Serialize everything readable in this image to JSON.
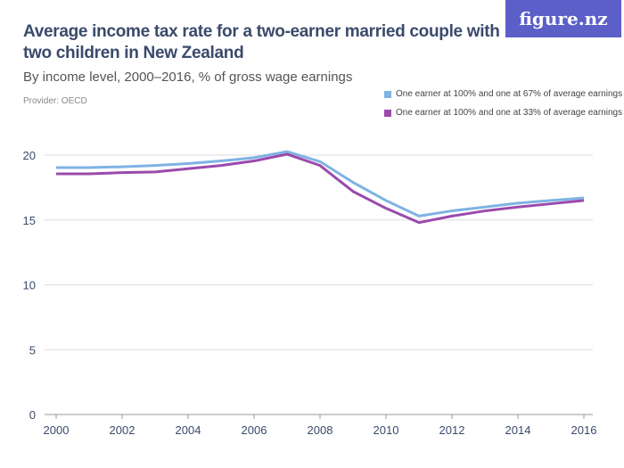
{
  "header": {
    "title": "Average income tax rate for a two-earner married couple with two children in New Zealand",
    "subtitle": "By income level, 2000–2016, % of gross wage earnings",
    "provider": "Provider: OECD",
    "logo": "figure.nz"
  },
  "chart_data": {
    "type": "line",
    "x": [
      2000,
      2001,
      2002,
      2003,
      2004,
      2005,
      2006,
      2007,
      2008,
      2009,
      2010,
      2011,
      2012,
      2013,
      2014,
      2015,
      2016
    ],
    "series": [
      {
        "name": "One earner at 100% and one at 67% of average earnings",
        "color": "#7fb3e3",
        "values": [
          19.04,
          19.04,
          19.1,
          19.2,
          19.35,
          19.55,
          19.8,
          20.27,
          19.5,
          17.9,
          16.5,
          15.3,
          15.7,
          16.0,
          16.3,
          16.5,
          16.7
        ]
      },
      {
        "name": "One earner at 100% and one at 33% of average earnings",
        "color": "#9b4aab",
        "values": [
          18.56,
          18.56,
          18.65,
          18.7,
          18.95,
          19.2,
          19.55,
          20.07,
          19.2,
          17.2,
          15.9,
          14.8,
          15.3,
          15.7,
          16.0,
          16.25,
          16.5
        ]
      }
    ],
    "yticks": [
      "0",
      "5",
      "10",
      "15",
      "20"
    ],
    "xticks": [
      "2000",
      "2002",
      "2004",
      "2006",
      "2008",
      "2010",
      "2012",
      "2014",
      "2016"
    ],
    "ylim": [
      0,
      20
    ],
    "xlim": [
      2000,
      2016
    ],
    "grid": true,
    "legend": "top-right"
  }
}
